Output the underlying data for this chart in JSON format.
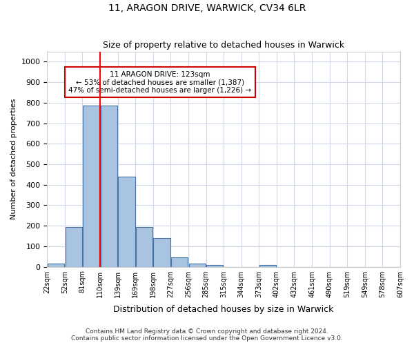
{
  "title1": "11, ARAGON DRIVE, WARWICK, CV34 6LR",
  "title2": "Size of property relative to detached houses in Warwick",
  "xlabel": "Distribution of detached houses by size in Warwick",
  "ylabel": "Number of detached properties",
  "bar_values": [
    15,
    195,
    785,
    785,
    440,
    195,
    140,
    45,
    15,
    10,
    0,
    0,
    10,
    0,
    0,
    0,
    0,
    0,
    0,
    0
  ],
  "bin_labels": [
    "22sqm",
    "52sqm",
    "81sqm",
    "110sqm",
    "139sqm",
    "169sqm",
    "198sqm",
    "227sqm",
    "256sqm",
    "285sqm",
    "315sqm",
    "344sqm",
    "373sqm",
    "402sqm",
    "432sqm",
    "461sqm",
    "490sqm",
    "519sqm",
    "549sqm",
    "578sqm",
    "607sqm"
  ],
  "bar_color": "#a8c4e0",
  "bar_edge_color": "#4472a8",
  "property_value": 123,
  "red_line_x": 2.5,
  "annotation_text": "11 ARAGON DRIVE: 123sqm\n← 53% of detached houses are smaller (1,387)\n47% of semi-detached houses are larger (1,226) →",
  "annotation_box_color": "#ffffff",
  "annotation_box_edge": "#cc0000",
  "ylim": [
    0,
    1050
  ],
  "yticks": [
    0,
    100,
    200,
    300,
    400,
    500,
    600,
    700,
    800,
    900,
    1000
  ],
  "footer1": "Contains HM Land Registry data © Crown copyright and database right 2024.",
  "footer2": "Contains public sector information licensed under the Open Government Licence v3.0.",
  "background_color": "#ffffff",
  "grid_color": "#d0d8e8"
}
